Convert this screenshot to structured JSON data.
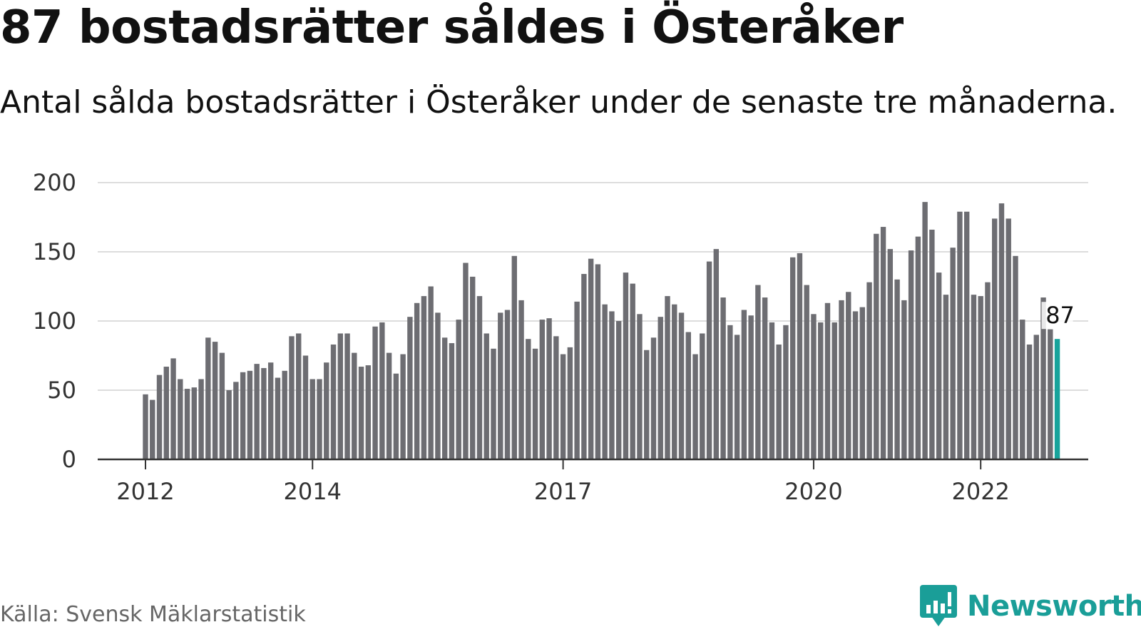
{
  "header": {
    "title": "87 bostadsrätter såldes i Österåker",
    "subtitle": "Antal sålda bostadsrätter i Österåker under de senaste tre månaderna."
  },
  "footer": {
    "source": "Källa: Svensk Mäklarstatistik",
    "brand": "Newsworthy",
    "brand_icon": "bar-chart-speech-bubble-icon"
  },
  "colors": {
    "bar": "#6d6d72",
    "highlight": "#17a39b",
    "grid": "#dddddd",
    "axis": "#333333",
    "brand": "#1a9e98"
  },
  "chart_data": {
    "type": "bar",
    "title": "87 bostadsrätter såldes i Österåker",
    "subtitle": "Antal sålda bostadsrätter i Österåker under de senaste tre månaderna.",
    "xlabel": "",
    "ylabel": "",
    "ylim": [
      0,
      200
    ],
    "yticks": [
      0,
      50,
      100,
      150,
      200
    ],
    "grid": true,
    "x_start": "2012-01",
    "x_tick_labels": [
      "2012",
      "2014",
      "2017",
      "2020",
      "2022"
    ],
    "highlight_last": true,
    "last_label": "87",
    "series": [
      {
        "values": [
          47,
          43,
          61,
          67,
          73,
          58,
          51,
          52,
          58,
          88,
          85,
          77,
          50,
          56,
          63,
          64,
          69,
          66,
          70,
          59,
          64,
          89,
          91,
          75,
          58,
          58,
          70,
          83,
          91,
          91,
          77,
          67,
          68,
          96,
          99,
          77,
          62,
          76,
          103,
          113,
          118,
          125,
          106,
          88,
          84,
          101,
          142,
          132,
          118,
          91,
          80,
          106,
          108,
          147,
          115,
          87,
          80,
          101,
          102,
          89,
          76,
          81,
          114,
          134,
          145,
          141,
          112,
          107,
          100,
          135,
          127,
          105,
          79,
          88,
          103,
          118,
          112,
          106,
          92,
          76,
          91,
          143,
          152,
          117,
          97,
          90,
          108,
          104,
          126,
          117,
          99,
          83,
          97,
          146,
          149,
          126,
          105,
          99,
          113,
          99,
          115,
          121,
          107,
          110,
          128,
          163,
          168,
          152,
          130,
          115,
          151,
          161,
          186,
          166,
          135,
          119,
          153,
          179,
          179,
          119,
          118,
          128,
          174,
          185,
          174,
          147,
          101,
          83,
          90,
          117,
          94,
          87
        ]
      }
    ]
  }
}
